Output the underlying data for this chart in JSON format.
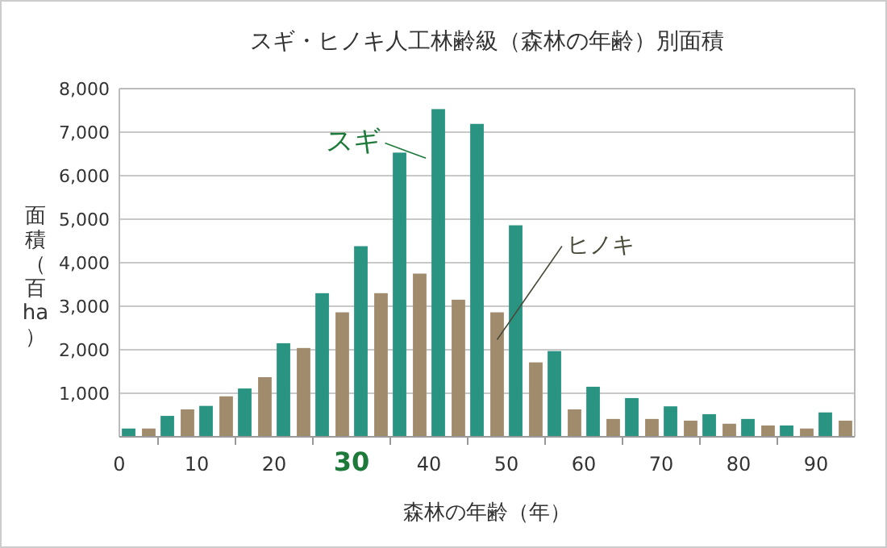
{
  "chart_data": {
    "type": "bar",
    "title": "スギ・ヒノキ人工林齢級（森林の年齢）別面積",
    "xlabel": "森林の年齢（年）",
    "ylabel": "面積（百ha）",
    "xlim": [
      0,
      95
    ],
    "xticks": [
      0,
      {
        "value": 5,
        "label": null
      },
      10,
      {
        "value": 15,
        "label": null
      },
      20,
      {
        "value": 25,
        "label": null
      },
      {
        "value": 30,
        "label": "**30**"
      },
      {
        "value": 35,
        "label": null
      },
      40,
      {
        "value": 45,
        "label": null
      },
      50,
      {
        "value": 55,
        "label": null
      },
      60,
      {
        "value": 65,
        "label": null
      },
      70,
      {
        "value": 75,
        "label": null
      },
      80,
      {
        "value": 85,
        "label": null
      },
      90
    ],
    "ylim": [
      0,
      8000
    ],
    "yticks": [
      {
        "value": 1000,
        "label": "1,000"
      },
      {
        "value": 2000,
        "label": "2,000"
      },
      {
        "value": 3000,
        "label": "3,000"
      },
      {
        "value": 4000,
        "label": "4,000"
      },
      {
        "value": 5000,
        "label": "5,000"
      },
      {
        "value": 6000,
        "label": "6,000"
      },
      {
        "value": 7000,
        "label": "7,000"
      },
      {
        "value": 8000,
        "label": "8,000"
      }
    ],
    "x": [
      2.5,
      7.5,
      12.5,
      17.5,
      22.5,
      27.5,
      32.5,
      37.5,
      42.5,
      47.5,
      52.5,
      57.5,
      62.5,
      67.5,
      72.5,
      77.5,
      82.5,
      87.5,
      92.5
    ],
    "grid": "y",
    "series": [
      {
        "name": "スギ",
        "color": "#2a9482",
        "values": [
          190,
          480,
          710,
          1110,
          2150,
          3300,
          4380,
          6530,
          7530,
          7190,
          4860,
          1970,
          1150,
          890,
          700,
          520,
          410,
          260,
          560
        ]
      },
      {
        "name": "ヒノキ",
        "color": "#a08b6c",
        "values": [
          190,
          630,
          930,
          1370,
          2040,
          2860,
          3300,
          3750,
          3150,
          2860,
          1710,
          630,
          410,
          410,
          370,
          300,
          260,
          190,
          370
        ]
      }
    ]
  }
}
